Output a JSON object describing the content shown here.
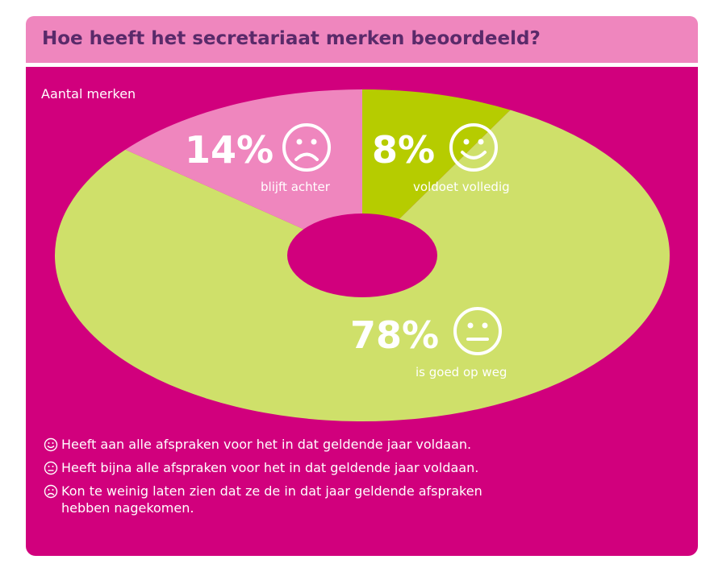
{
  "title": "Hoe heeft het secretariaat merken beoordeeld?",
  "chart_data": {
    "type": "pie",
    "ylabel": "Aantal merken",
    "slices": [
      {
        "label": "voldoet volledig",
        "percent_label": "8%",
        "value": 8,
        "color": "#b6cc00",
        "icon": "smiley-happy-icon"
      },
      {
        "label": "is goed op weg",
        "percent_label": "78%",
        "value": 78,
        "color": "#cfe06a",
        "icon": "smiley-neutral-icon"
      },
      {
        "label": "blijft achter",
        "percent_label": "14%",
        "value": 14,
        "color": "#ef86be",
        "icon": "smiley-sad-icon"
      }
    ]
  },
  "notes": [
    {
      "icon": "smiley-happy-icon",
      "text": "Heeft aan alle afspraken voor het in dat geldende jaar voldaan."
    },
    {
      "icon": "smiley-neutral-icon",
      "text": "Heeft bijna alle afspraken voor het in dat geldende jaar voldaan."
    },
    {
      "icon": "smiley-sad-icon",
      "text": "Kon te weinig laten zien dat ze de in dat jaar geldende afspraken\nhebben nagekomen."
    }
  ],
  "colors": {
    "header": "#ef86be",
    "panel": "#d1007d",
    "title": "#5a2a6a",
    "text": "#ffffff"
  }
}
